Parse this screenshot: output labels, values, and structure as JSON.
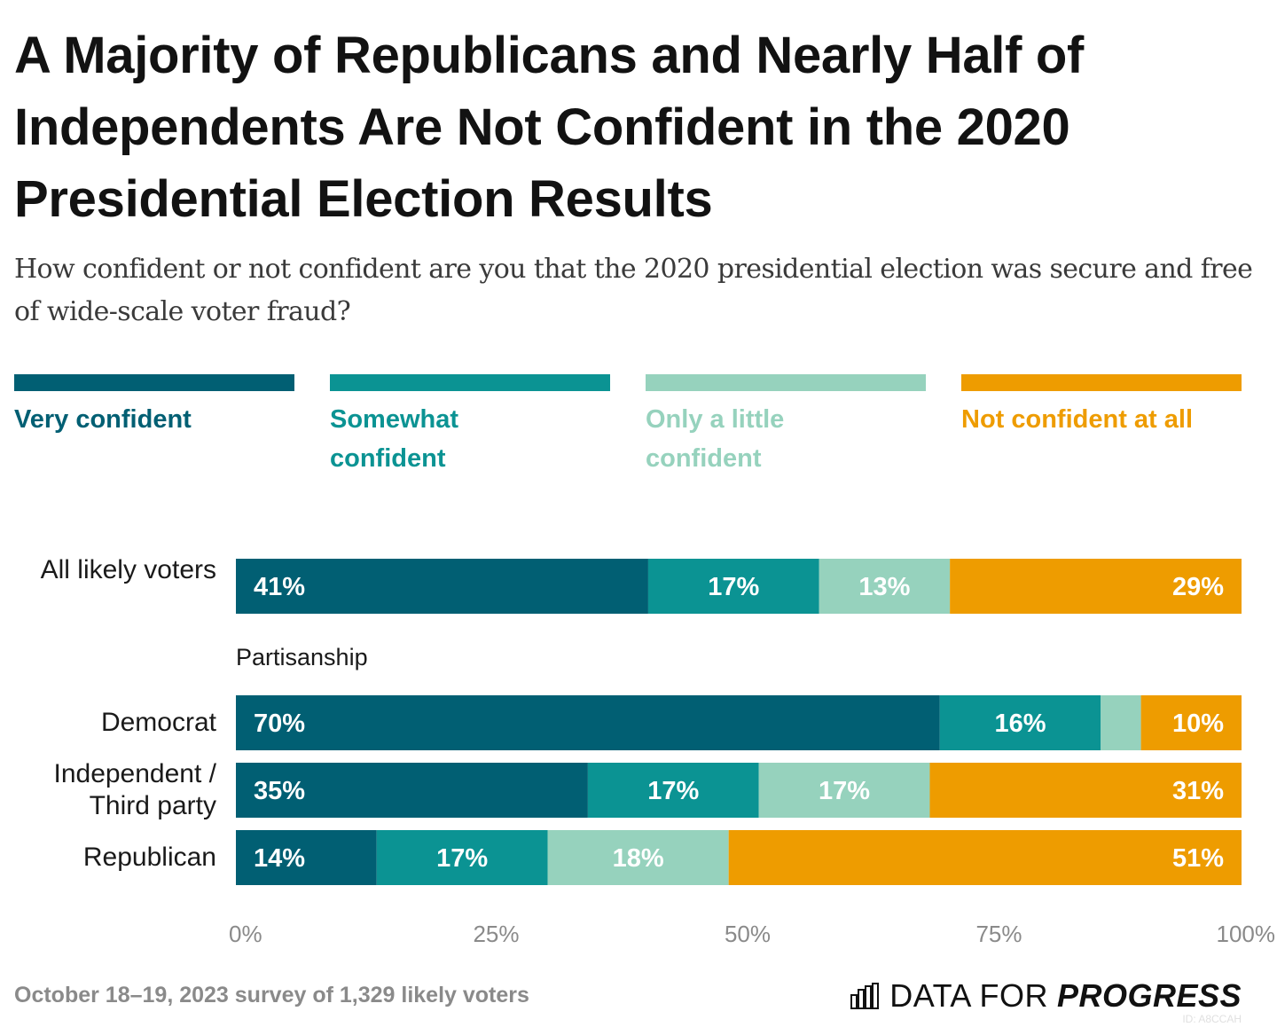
{
  "header": {
    "title": "A Majority of Republicans and Nearly Half of Independents Are Not Confident in the 2020 Presidential Election Results",
    "subtitle": "How confident or not confident are you that the 2020 presidential election was secure and free of wide-scale voter fraud?"
  },
  "legend": [
    {
      "label": "Very confident",
      "color": "#015f73"
    },
    {
      "label": "Somewhat confident",
      "color": "#0b9393"
    },
    {
      "label": "Only a little confident",
      "color": "#96d2bd"
    },
    {
      "label": "Not confident at all",
      "color": "#ee9c00"
    }
  ],
  "group_label": "Partisanship",
  "chart_data": {
    "type": "bar",
    "orientation": "horizontal",
    "stacked": true,
    "title": "A Majority of Republicans and Nearly Half of Independents Are Not Confident in the 2020 Presidential Election Results",
    "subtitle": "How confident or not confident are you that the 2020 presidential election was secure and free of wide-scale voter fraud?",
    "categories": [
      "All likely voters",
      "Democrat",
      "Independent / Third party",
      "Republican"
    ],
    "category_groups": [
      {
        "name": "",
        "categories": [
          "All likely voters"
        ]
      },
      {
        "name": "Partisanship",
        "categories": [
          "Democrat",
          "Independent / Third party",
          "Republican"
        ]
      }
    ],
    "series": [
      {
        "name": "Very confident",
        "color": "#015f73",
        "values": [
          41,
          70,
          35,
          14
        ],
        "labels": [
          "41%",
          "70%",
          "35%",
          "14%"
        ]
      },
      {
        "name": "Somewhat confident",
        "color": "#0b9393",
        "values": [
          17,
          16,
          17,
          17
        ],
        "labels": [
          "17%",
          "16%",
          "17%",
          "17%"
        ]
      },
      {
        "name": "Only a little confident",
        "color": "#96d2bd",
        "values": [
          13,
          4,
          17,
          18
        ],
        "labels": [
          "13%",
          "",
          "17%",
          "18%"
        ]
      },
      {
        "name": "Not confident at all",
        "color": "#ee9c00",
        "values": [
          29,
          10,
          31,
          51
        ],
        "labels": [
          "29%",
          "10%",
          "31%",
          "51%"
        ]
      }
    ],
    "xlabel": "",
    "ylabel": "",
    "xlim": [
      0,
      100
    ],
    "xticks": [
      0,
      25,
      50,
      75,
      100
    ],
    "xtick_labels": [
      "0%",
      "25%",
      "50%",
      "75%",
      "100%"
    ],
    "grid": false,
    "legend_position": "top"
  },
  "footer": {
    "note": "October 18–19, 2023 survey of 1,329 likely voters",
    "brand_light": "DATA FOR",
    "brand_bold": "PROGRESS",
    "chart_id": "ID: A8CCAH"
  }
}
